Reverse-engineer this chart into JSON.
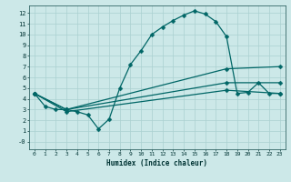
{
  "title": "",
  "xlabel": "Humidex (Indice chaleur)",
  "ylabel": "",
  "bg_color": "#cce8e8",
  "grid_color": "#aad0d0",
  "line_color": "#006666",
  "xlim": [
    -0.5,
    23.5
  ],
  "ylim": [
    -0.7,
    12.7
  ],
  "xticks": [
    0,
    1,
    2,
    3,
    4,
    5,
    6,
    7,
    8,
    9,
    10,
    11,
    12,
    13,
    14,
    15,
    16,
    17,
    18,
    19,
    20,
    21,
    22,
    23
  ],
  "yticks": [
    0,
    1,
    2,
    3,
    4,
    5,
    6,
    7,
    8,
    9,
    10,
    11,
    12
  ],
  "ytick_labels": [
    "-0",
    "1",
    "2",
    "3",
    "4",
    "5",
    "6",
    "7",
    "8",
    "9",
    "10",
    "11",
    "12"
  ],
  "curve1_x": [
    0,
    1,
    2,
    3,
    4,
    5,
    6,
    7,
    8,
    9,
    10,
    11,
    12,
    13,
    14,
    15,
    16,
    17,
    18,
    19,
    20,
    21,
    22,
    23
  ],
  "curve1_y": [
    4.5,
    3.3,
    3.0,
    3.0,
    2.8,
    2.5,
    1.2,
    2.1,
    5.0,
    7.2,
    8.5,
    10.0,
    10.7,
    11.3,
    11.8,
    12.2,
    11.9,
    11.2,
    9.8,
    4.5,
    4.6,
    5.5,
    4.5,
    4.5
  ],
  "curve2_x": [
    0,
    3,
    18,
    23
  ],
  "curve2_y": [
    4.5,
    3.0,
    6.8,
    7.0
  ],
  "curve3_x": [
    0,
    3,
    18,
    23
  ],
  "curve3_y": [
    4.5,
    2.8,
    4.8,
    4.5
  ],
  "curve4_x": [
    0,
    3,
    18,
    23
  ],
  "curve4_y": [
    4.5,
    3.0,
    5.5,
    5.5
  ],
  "markersize": 2.5,
  "linewidth": 0.9
}
